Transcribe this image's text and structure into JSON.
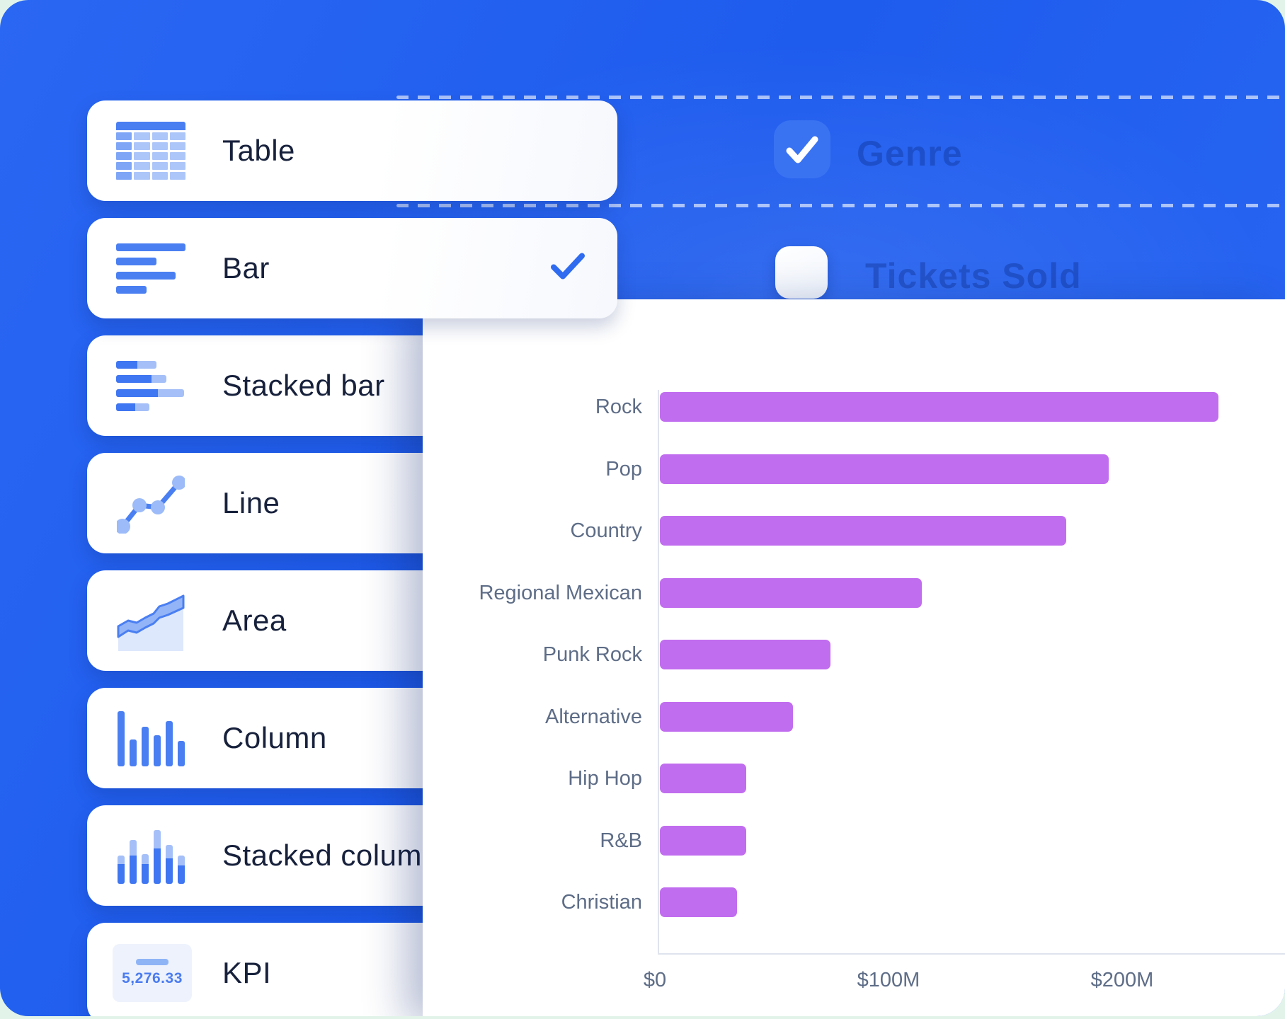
{
  "ui": {
    "toggles": [
      {
        "label": "Genre",
        "checked": true
      },
      {
        "label": "Tickets Sold",
        "checked": false
      }
    ]
  },
  "menu": {
    "items": [
      {
        "label": "Table",
        "icon": "table-icon",
        "selected": false
      },
      {
        "label": "Bar",
        "icon": "bar-chart-icon",
        "selected": true
      },
      {
        "label": "Stacked bar",
        "icon": "stacked-bar-icon",
        "selected": false
      },
      {
        "label": "Line",
        "icon": "line-chart-icon",
        "selected": false
      },
      {
        "label": "Area",
        "icon": "area-chart-icon",
        "selected": false
      },
      {
        "label": "Column",
        "icon": "column-chart-icon",
        "selected": false
      },
      {
        "label": "Stacked column",
        "icon": "stacked-column-icon",
        "selected": false
      },
      {
        "label": "KPI",
        "icon": "kpi-icon",
        "selected": false,
        "preview_value": "5,276.33"
      }
    ]
  },
  "chart_data": {
    "type": "bar",
    "orientation": "horizontal",
    "categories": [
      "Rock",
      "Pop",
      "Country",
      "Regional Mexican",
      "Punk Rock",
      "Alternative",
      "Hip Hop",
      "R&B",
      "Christian"
    ],
    "values": [
      239,
      192,
      174,
      112,
      73,
      57,
      37,
      37,
      33
    ],
    "value_unit": "USD millions (estimated from axis)",
    "x_ticks": [
      {
        "label": "$0",
        "value": 0
      },
      {
        "label": "$100M",
        "value": 100
      },
      {
        "label": "$200M",
        "value": 200
      }
    ],
    "xlim": [
      0,
      268
    ],
    "grid": false,
    "legend": null,
    "title": null,
    "bar_color": "#c16def"
  },
  "colors": {
    "background_blue": "#2462ef",
    "accent_blue": "#2f6bf0",
    "icon_blue": "#4a7ff2",
    "icon_light_blue": "#a5c0f8",
    "bar_purple": "#c16def",
    "ghost_text_blue": "#1b4fc6",
    "label_gray": "#5e6d87",
    "card_text": "#17213c",
    "page_mint": "#e2f4ea"
  }
}
